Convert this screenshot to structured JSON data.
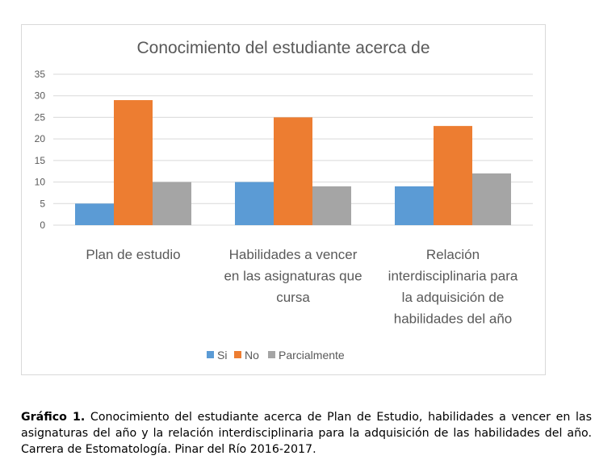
{
  "chart_data": {
    "type": "bar",
    "title": "Conocimiento del estudiante acerca de",
    "categories": [
      [
        "Plan de estudio"
      ],
      [
        "Habilidades a vencer",
        "en las asignaturas que",
        "cursa"
      ],
      [
        "Relación",
        "interdisciplinaria para",
        "la adquisición de",
        "habilidades del año"
      ]
    ],
    "series": [
      {
        "name": "Si",
        "color": "#5b9bd5",
        "values": [
          5,
          10,
          9
        ]
      },
      {
        "name": "No",
        "color": "#ed7d31",
        "values": [
          29,
          25,
          23
        ]
      },
      {
        "name": "Parcialmente",
        "color": "#a5a5a5",
        "values": [
          10,
          9,
          12
        ]
      }
    ],
    "ylim": [
      0,
      35
    ],
    "yticks": [
      0,
      5,
      10,
      15,
      20,
      25,
      30,
      35
    ],
    "grid": true,
    "legend": "bottom",
    "xlabel": "",
    "ylabel": ""
  },
  "caption": {
    "label": "Gráfico 1.",
    "text": " Conocimiento del estudiante acerca de Plan de Estudio, habilidades a vencer en las asignaturas del año y la relación interdisciplinaria para la adquisición de las habilidades del año. Carrera de Estomatología. Pinar del Río 2016-2017."
  }
}
